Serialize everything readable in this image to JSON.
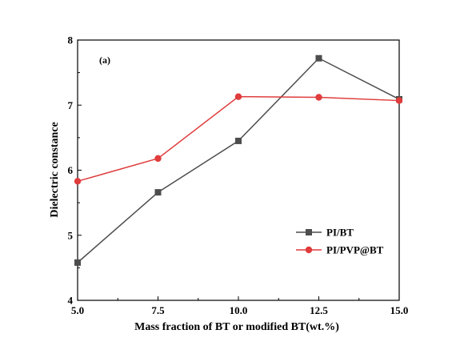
{
  "chart_data": {
    "type": "line",
    "title": "",
    "annotation": "(a)",
    "xlabel": "Mass fraction of BT or modified BT(wt.%)",
    "ylabel": "Dielectric constance",
    "xlim": [
      5.0,
      15.0
    ],
    "ylim": [
      4,
      8
    ],
    "x_ticks": [
      "5.0",
      "7.5",
      "10.0",
      "12.5",
      "15.0"
    ],
    "y_ticks": [
      "4",
      "5",
      "6",
      "7",
      "8"
    ],
    "x": [
      5.0,
      7.5,
      10.0,
      12.5,
      15.0
    ],
    "grid": false,
    "legend_position": "right",
    "series": [
      {
        "name": "PI/BT",
        "color": "#4d4d4d",
        "marker": "square",
        "values": [
          4.58,
          5.66,
          6.45,
          7.72,
          7.09
        ]
      },
      {
        "name": "PI/PVP@BT",
        "color": "#e03c3c",
        "marker": "circle",
        "values": [
          5.83,
          6.18,
          7.13,
          7.12,
          7.07
        ]
      }
    ]
  }
}
